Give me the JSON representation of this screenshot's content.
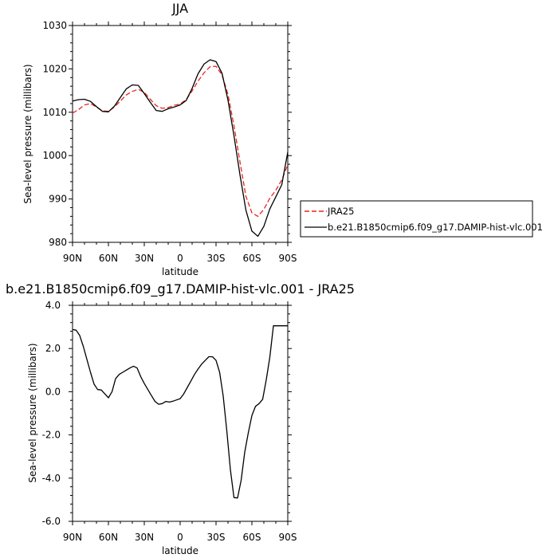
{
  "chart_data": [
    {
      "type": "line",
      "title": "JJA",
      "xlabel": "latitude",
      "ylabel": "Sea-level pressure (millibars)",
      "xticks": [
        "90N",
        "60N",
        "30N",
        "0",
        "30S",
        "60S",
        "90S"
      ],
      "yticks": [
        "980",
        "990",
        "1000",
        "1010",
        "1020",
        "1030"
      ],
      "xlim": [
        90,
        -90
      ],
      "ylim": [
        980,
        1030
      ],
      "grid": false,
      "legend_position": "right",
      "series": [
        {
          "name": "JRA25",
          "color": "#e8251f",
          "dash": "dashed",
          "x": [
            90,
            85,
            80,
            75,
            70,
            65,
            60,
            55,
            50,
            45,
            40,
            35,
            30,
            25,
            20,
            15,
            10,
            5,
            0,
            -5,
            -10,
            -15,
            -20,
            -25,
            -30,
            -35,
            -40,
            -45,
            -50,
            -55,
            -60,
            -65,
            -70,
            -75,
            -80,
            -85,
            -90
          ],
          "values": [
            1009.8,
            1010.6,
            1011.7,
            1012.0,
            1011.2,
            1010.3,
            1010.2,
            1011.2,
            1012.6,
            1014.0,
            1014.8,
            1015.3,
            1014.6,
            1013.0,
            1011.5,
            1010.9,
            1011.1,
            1011.6,
            1011.9,
            1012.9,
            1014.9,
            1017.2,
            1019.1,
            1020.5,
            1020.6,
            1018.6,
            1014.1,
            1006.9,
            998.6,
            990.6,
            986.8,
            986.0,
            987.6,
            990.2,
            992.0,
            994.4,
            997.9
          ]
        },
        {
          "name": "b.e21.B1850cmip6.f09_g17.DAMIP-hist-vlc.001",
          "color": "#000000",
          "dash": "solid",
          "x": [
            90,
            85,
            80,
            75,
            70,
            65,
            60,
            55,
            50,
            45,
            40,
            35,
            30,
            25,
            20,
            15,
            10,
            5,
            0,
            -5,
            -10,
            -15,
            -20,
            -25,
            -30,
            -35,
            -40,
            -45,
            -50,
            -55,
            -60,
            -65,
            -70,
            -75,
            -80,
            -85,
            -90
          ],
          "values": [
            1012.6,
            1012.9,
            1013.0,
            1012.5,
            1011.3,
            1010.2,
            1010.1,
            1011.4,
            1013.4,
            1015.4,
            1016.3,
            1016.2,
            1014.3,
            1012.3,
            1010.4,
            1010.2,
            1010.8,
            1011.2,
            1011.7,
            1012.7,
            1015.5,
            1018.9,
            1021.1,
            1022.1,
            1021.7,
            1019.0,
            1012.8,
            1004.6,
            995.6,
            987.4,
            982.6,
            981.4,
            983.7,
            987.7,
            990.5,
            993.3,
            1000.8
          ]
        }
      ]
    },
    {
      "type": "line",
      "title": "b.e21.B1850cmip6.f09_g17.DAMIP-hist-vlc.001 - JRA25",
      "xlabel": "latitude",
      "ylabel": "Sea-level pressure (millibars)",
      "xticks": [
        "90N",
        "60N",
        "30N",
        "0",
        "30S",
        "60S",
        "90S"
      ],
      "yticks": [
        "-6.0",
        "-4.0",
        "-2.0",
        "0.0",
        "2.0",
        "4.0"
      ],
      "xlim": [
        90,
        -90
      ],
      "ylim": [
        -6,
        4
      ],
      "grid": false,
      "series": [
        {
          "color": "#000000",
          "dash": "solid",
          "x": [
            90,
            87,
            84,
            81,
            78,
            75,
            72,
            69,
            66,
            63,
            60,
            57,
            54,
            51,
            48,
            45,
            42,
            39,
            36,
            33,
            30,
            27,
            24,
            21,
            18,
            15,
            12,
            9,
            6,
            3,
            0,
            -3,
            -6,
            -9,
            -12,
            -15,
            -18,
            -21,
            -24,
            -27,
            -30,
            -33,
            -36,
            -39,
            -42,
            -45,
            -48,
            -51,
            -54,
            -57,
            -60,
            -63,
            -66,
            -69,
            -72,
            -75,
            -78,
            -81,
            -84,
            -87,
            -90
          ],
          "values": [
            2.88,
            2.85,
            2.6,
            2.1,
            1.5,
            0.9,
            0.35,
            0.1,
            0.08,
            -0.1,
            -0.28,
            0.0,
            0.6,
            0.8,
            0.9,
            1.0,
            1.1,
            1.18,
            1.1,
            0.7,
            0.38,
            0.1,
            -0.18,
            -0.45,
            -0.58,
            -0.55,
            -0.45,
            -0.48,
            -0.44,
            -0.38,
            -0.32,
            -0.1,
            0.2,
            0.5,
            0.8,
            1.05,
            1.28,
            1.45,
            1.62,
            1.62,
            1.45,
            0.9,
            -0.2,
            -1.8,
            -3.6,
            -4.9,
            -4.92,
            -4.1,
            -2.8,
            -1.9,
            -1.1,
            -0.68,
            -0.55,
            -0.35,
            0.55,
            1.6,
            3.05,
            3.05,
            3.05,
            3.05,
            3.05
          ]
        }
      ]
    }
  ]
}
